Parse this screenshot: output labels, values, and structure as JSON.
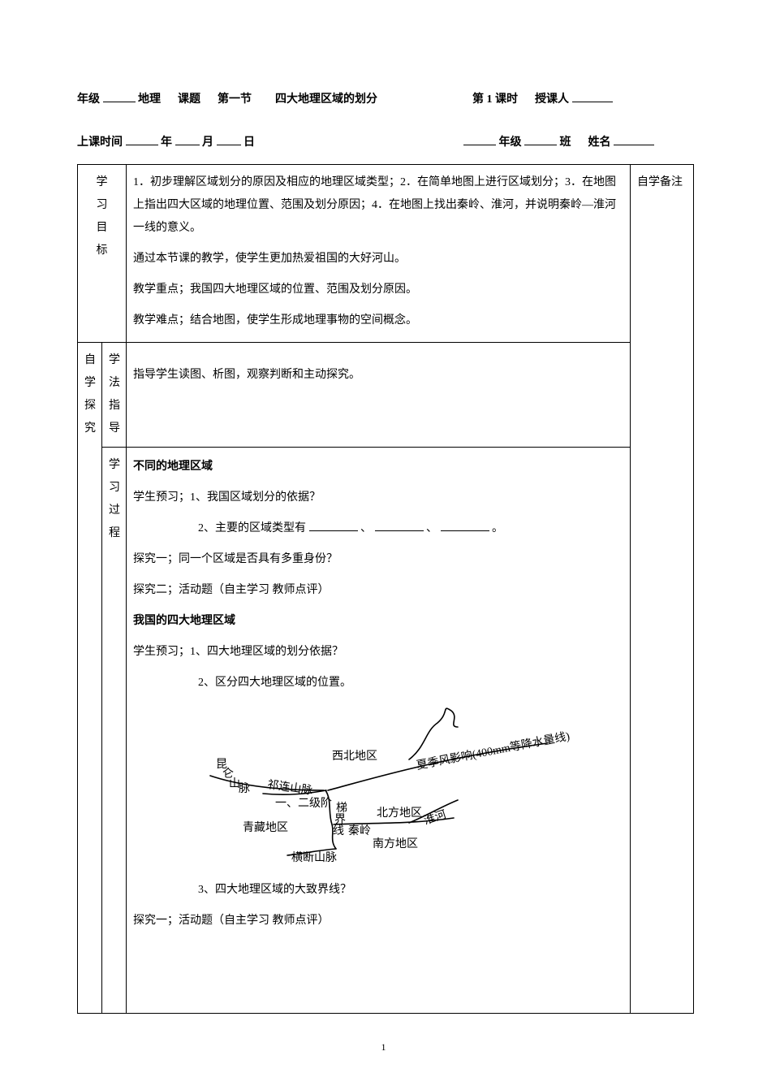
{
  "header": {
    "line1_prefix": "年级",
    "line1_subject": "地理",
    "line1_topic_label": "课题",
    "line1_section": "第一节",
    "line1_title": "四大地理区域的划分",
    "line1_period": "第 1 课时",
    "line1_teacher_label": "授课人",
    "line2_classtime": "上课时间",
    "line2_year": "年",
    "line2_month": "月",
    "line2_day": "日",
    "line2_grade": "年级",
    "line2_class": "班",
    "line2_name": "姓名"
  },
  "goals": {
    "label_chars": [
      "学",
      "习",
      "目",
      "标"
    ],
    "p1": "1．初步理解区域划分的原因及相应的地理区域类型；2．在简单地图上进行区域划分；3．在地图上指出四大区域的地理位置、范围及划分原因；4．在地图上找出秦岭、淮河，并说明秦岭—淮河一线的意义。",
    "p2": "通过本节课的教学，使学生更加热爱祖国的大好河山。",
    "p3": "教学重点；我国四大地理区域的位置、范围及划分原因。",
    "p4": "教学难点；结合地图，使学生形成地理事物的空间概念。"
  },
  "notes_label": "自学备注",
  "selfstudy_label_chars": [
    "自",
    "学",
    "探",
    "究"
  ],
  "guide": {
    "label_chars": [
      "学",
      "法",
      "指",
      "导"
    ],
    "text": "指导学生读图、析图，观察判断和主动探究。"
  },
  "process": {
    "label_chars": [
      "学",
      "习",
      "过",
      "程"
    ],
    "h1": "不同的地理区域",
    "p1": "学生预习；1、我国区域划分的依据？",
    "p2_prefix": "2、主要的区域类型有",
    "p2_sep1": "、",
    "p2_sep2": "、",
    "p2_suffix": "。",
    "p3": "探究一；同一个区域是否具有多重身份？",
    "p4": "探究二；活动题（自主学习  教师点评）",
    "h2": "我国的四大地理区域",
    "p5": "学生预习；1、四大地理区域的划分依据？",
    "p6": "2、区分四大地理区域的位置。",
    "p7": "3、四大地理区域的大致界线？",
    "p8": "探究一；活动题（自主学习  教师点评）"
  },
  "diagram": {
    "nw": "西北地区",
    "north": "北方地区",
    "south": "南方地区",
    "tibet": "青藏地区",
    "kunlun1": "昆",
    "kunlun2": "仑",
    "kunlun3": "山",
    "kunlun4": "脉",
    "qilian": "祁连山脉",
    "step_a": "一、二级阶",
    "step_b": "梯",
    "step_c": "界",
    "step_d": "线",
    "hengduan": "横断山脉",
    "qinling": "秦岭",
    "huaihe": "淮河",
    "monsoon": "夏季风影响(400mm等降水量线)",
    "stroke": "#000000",
    "stroke_width": 1.6
  },
  "page_number": "1"
}
